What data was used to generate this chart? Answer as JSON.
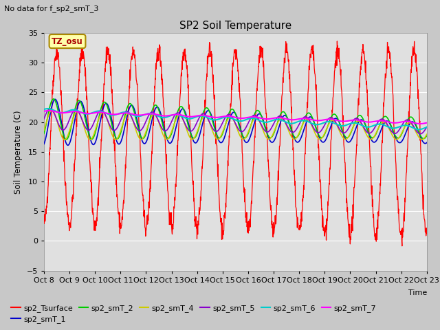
{
  "title": "SP2 Soil Temperature",
  "ylabel": "Soil Temperature (C)",
  "xlabel": "Time",
  "note": "No data for f_sp2_smT_3",
  "tz_label": "TZ_osu",
  "ylim": [
    -5,
    35
  ],
  "xlim": [
    0,
    15
  ],
  "xtick_labels": [
    "Oct 8",
    "Oct 9",
    "Oct 10",
    "Oct 11",
    "Oct 12",
    "Oct 13",
    "Oct 14",
    "Oct 15",
    "Oct 16",
    "Oct 17",
    "Oct 18",
    "Oct 19",
    "Oct 20",
    "Oct 21",
    "Oct 22",
    "Oct 23"
  ],
  "series_colors": {
    "sp2_Tsurface": "#FF0000",
    "sp2_smT_1": "#0000CC",
    "sp2_smT_2": "#00CC00",
    "sp2_smT_4": "#CCCC00",
    "sp2_smT_5": "#8800CC",
    "sp2_smT_6": "#00CCCC",
    "sp2_smT_7": "#FF00FF"
  },
  "legend_entries": [
    "sp2_Tsurface",
    "sp2_smT_1",
    "sp2_smT_2",
    "sp2_smT_4",
    "sp2_smT_5",
    "sp2_smT_6",
    "sp2_smT_7"
  ],
  "fig_background": "#C8C8C8",
  "plot_background": "#E0E0E0",
  "grid_color": "#FFFFFF",
  "yticks": [
    -5,
    0,
    5,
    10,
    15,
    20,
    25,
    30,
    35
  ]
}
